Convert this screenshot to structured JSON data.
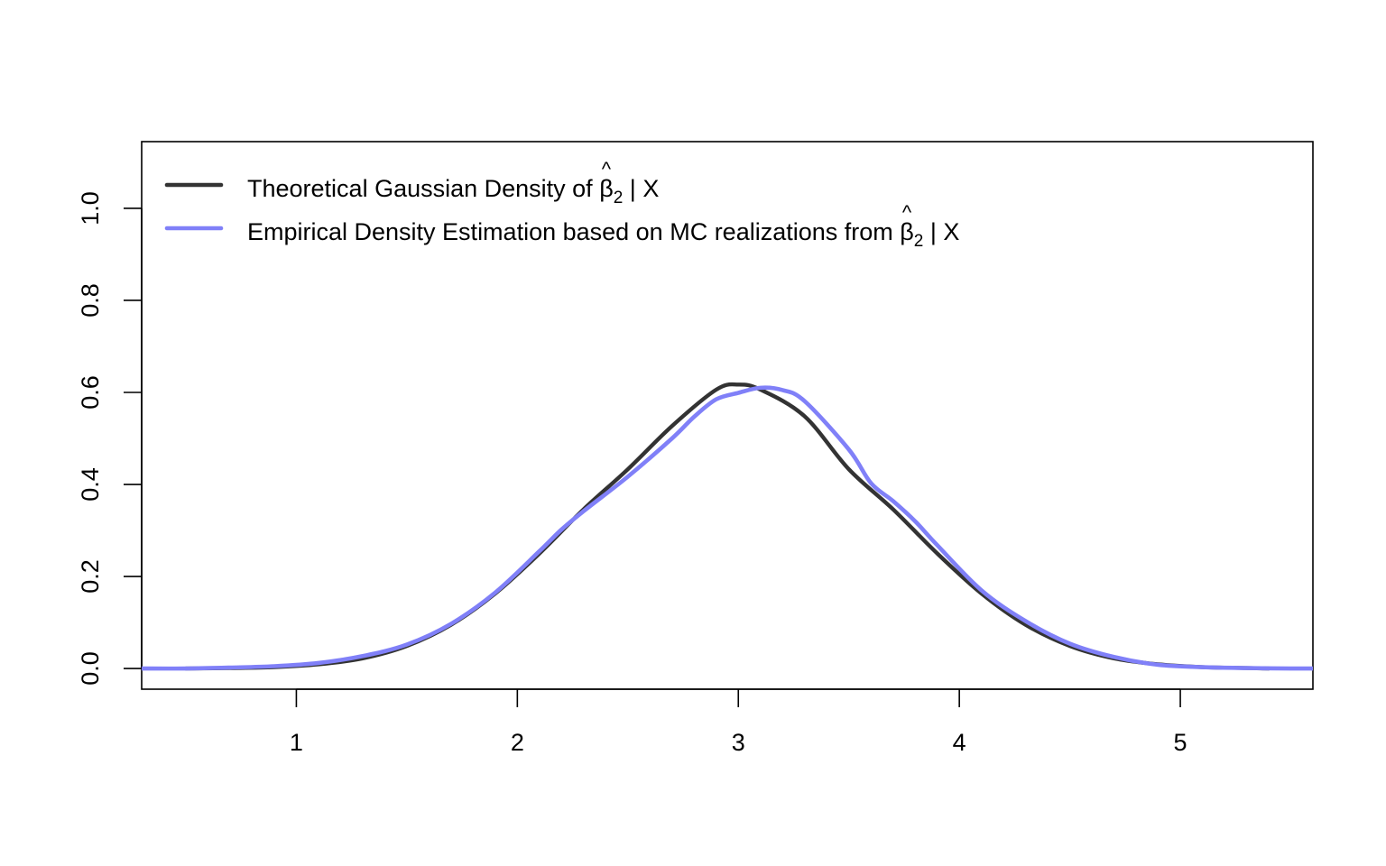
{
  "chart_data": {
    "type": "line",
    "title": "",
    "xlabel": "",
    "ylabel": "",
    "xlim": [
      0.3,
      5.6
    ],
    "ylim": [
      -0.045,
      1.145
    ],
    "x_ticks": [
      1,
      2,
      3,
      4,
      5
    ],
    "y_ticks": [
      0.0,
      0.2,
      0.4,
      0.6,
      0.8,
      1.0
    ],
    "x_tick_labels": [
      "1",
      "2",
      "3",
      "4",
      "5"
    ],
    "y_tick_labels": [
      "0.0",
      "0.2",
      "0.4",
      "0.6",
      "0.8",
      "1.0"
    ],
    "grid": false,
    "legend_position": "top-left",
    "series": [
      {
        "key": "theoretical",
        "legend": {
          "before": "Theoretical Gaussian Density of ",
          "symbol": "β",
          "hat": "^",
          "sub": "2",
          "after": " | X"
        },
        "color": "#333333",
        "x": [
          0.5,
          0.7,
          0.9,
          1.1,
          1.3,
          1.5,
          1.7,
          1.9,
          2.1,
          2.3,
          2.5,
          2.7,
          2.9,
          3.0,
          3.1,
          3.3,
          3.5,
          3.7,
          3.9,
          4.1,
          4.3,
          4.5,
          4.7,
          4.9,
          5.1,
          5.3,
          5.4
        ],
        "y": [
          0.0,
          0.001,
          0.003,
          0.009,
          0.022,
          0.049,
          0.095,
          0.163,
          0.25,
          0.346,
          0.433,
          0.527,
          0.606,
          0.617,
          0.606,
          0.548,
          0.433,
          0.346,
          0.25,
          0.163,
          0.095,
          0.049,
          0.022,
          0.009,
          0.003,
          0.001,
          0.0
        ]
      },
      {
        "key": "empirical",
        "legend": {
          "before": "Empirical Density Estimation based on MC realizations from ",
          "symbol": "β",
          "hat": "^",
          "sub": "2",
          "after": " | X"
        },
        "color": "#8080f8",
        "x": [
          0.3,
          0.5,
          0.7,
          0.9,
          1.1,
          1.3,
          1.5,
          1.7,
          1.9,
          2.1,
          2.2,
          2.3,
          2.5,
          2.7,
          2.8,
          2.9,
          3.0,
          3.1,
          3.2,
          3.3,
          3.5,
          3.6,
          3.7,
          3.8,
          3.9,
          4.1,
          4.3,
          4.5,
          4.7,
          4.9,
          5.1,
          5.3,
          5.5,
          5.6
        ],
        "y": [
          0.0,
          0.0,
          0.002,
          0.005,
          0.012,
          0.027,
          0.052,
          0.097,
          0.165,
          0.255,
          0.302,
          0.342,
          0.417,
          0.5,
          0.547,
          0.585,
          0.599,
          0.61,
          0.605,
          0.581,
          0.476,
          0.403,
          0.364,
          0.32,
          0.268,
          0.17,
          0.103,
          0.054,
          0.025,
          0.008,
          0.003,
          0.001,
          0.0,
          0.0
        ]
      }
    ]
  }
}
